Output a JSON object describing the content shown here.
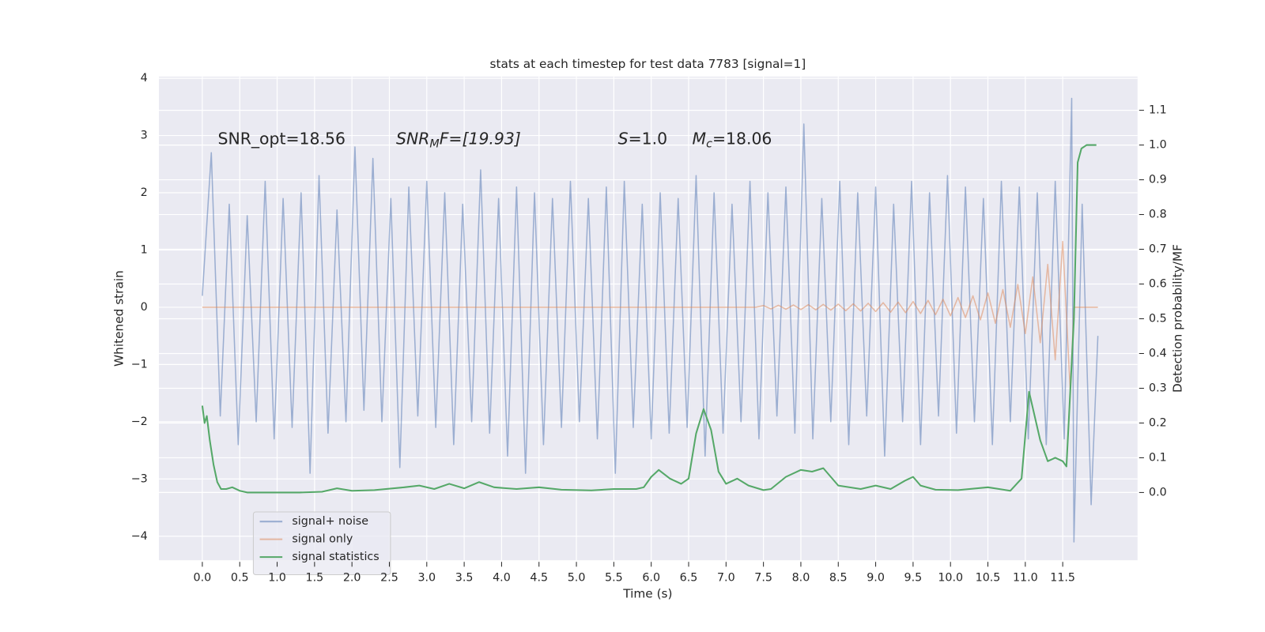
{
  "chart_data": {
    "type": "line",
    "title": "stats at each timestep for test data 7783 [signal=1]",
    "x_label": "Time (s)",
    "y_label": "Whitened strain",
    "y2_label": "Detection probability/MF",
    "annotations": [
      [
        "SNR_opt=18.56"
      ],
      [
        "SNR",
        "M",
        "F=[19.93]"
      ],
      [
        "S",
        "=1.0"
      ],
      [
        "M",
        "c",
        "=18.06"
      ]
    ],
    "grid": true,
    "legend_position": "lower left",
    "xlim": [
      -0.58,
      12.5
    ],
    "xticks": [
      {
        "value": 0,
        "label": "0.0"
      },
      {
        "value": 0.5,
        "label": "0.5"
      },
      {
        "value": 1,
        "label": "1.0"
      },
      {
        "value": 1.5,
        "label": "1.5"
      },
      {
        "value": 2,
        "label": "2.0"
      },
      {
        "value": 2.5,
        "label": "2.5"
      },
      {
        "value": 3,
        "label": "3.0"
      },
      {
        "value": 3.5,
        "label": "3.5"
      },
      {
        "value": 4,
        "label": "4.0"
      },
      {
        "value": 4.5,
        "label": "4.5"
      },
      {
        "value": 5,
        "label": "5.0"
      },
      {
        "value": 5.5,
        "label": "5.5"
      },
      {
        "value": 6,
        "label": "6.0"
      },
      {
        "value": 6.5,
        "label": "6.5"
      },
      {
        "value": 7,
        "label": "7.0"
      },
      {
        "value": 7.5,
        "label": "7.5"
      },
      {
        "value": 8,
        "label": "8.0"
      },
      {
        "value": 8.5,
        "label": "8.5"
      },
      {
        "value": 9,
        "label": "9.0"
      },
      {
        "value": 9.5,
        "label": "9.5"
      },
      {
        "value": 10,
        "label": "10.0"
      },
      {
        "value": 10.5,
        "label": "10.5"
      },
      {
        "value": 11,
        "label": "11.0"
      },
      {
        "value": 11.5,
        "label": "11.5"
      }
    ],
    "ylim": [
      -4.42,
      4.03
    ],
    "yticks": [
      {
        "value": -4,
        "label": "−4"
      },
      {
        "value": -3,
        "label": "−3"
      },
      {
        "value": -2,
        "label": "−2"
      },
      {
        "value": -1,
        "label": "−1"
      },
      0,
      1,
      2,
      3,
      4
    ],
    "y2lim": [
      -0.195,
      1.197
    ],
    "y2ticks": [
      {
        "value": 0,
        "label": "0.0"
      },
      {
        "value": 0.1,
        "label": "0.1"
      },
      {
        "value": 0.2,
        "label": "0.2"
      },
      {
        "value": 0.3,
        "label": "0.3"
      },
      {
        "value": 0.4,
        "label": "0.4"
      },
      {
        "value": 0.5,
        "label": "0.5"
      },
      {
        "value": 0.6,
        "label": "0.6"
      },
      {
        "value": 0.7,
        "label": "0.7"
      },
      {
        "value": 0.8,
        "label": "0.8"
      },
      {
        "value": 0.9,
        "label": "0.9"
      },
      {
        "value": 1,
        "label": "1.0"
      },
      {
        "value": 1.1,
        "label": "1.1"
      }
    ],
    "series": [
      {
        "name": "signal+ noise",
        "color": "#4c72b0",
        "alpha": 0.5,
        "x": [
          0.0,
          0.12,
          0.24,
          0.36,
          0.48,
          0.6,
          0.72,
          0.84,
          0.96,
          1.08,
          1.2,
          1.32,
          1.44,
          1.56,
          1.68,
          1.8,
          1.92,
          2.04,
          2.16,
          2.28,
          2.4,
          2.52,
          2.64,
          2.76,
          2.88,
          3.0,
          3.12,
          3.24,
          3.36,
          3.48,
          3.6,
          3.72,
          3.84,
          3.96,
          4.08,
          4.2,
          4.32,
          4.44,
          4.56,
          4.68,
          4.8,
          4.92,
          5.04,
          5.16,
          5.28,
          5.4,
          5.52,
          5.64,
          5.76,
          5.88,
          6.0,
          6.12,
          6.24,
          6.36,
          6.48,
          6.6,
          6.72,
          6.84,
          6.96,
          7.08,
          7.2,
          7.32,
          7.44,
          7.56,
          7.68,
          7.8,
          7.92,
          8.04,
          8.16,
          8.28,
          8.4,
          8.52,
          8.64,
          8.76,
          8.88,
          9.0,
          9.12,
          9.24,
          9.36,
          9.48,
          9.6,
          9.72,
          9.84,
          9.96,
          10.08,
          10.2,
          10.32,
          10.44,
          10.56,
          10.68,
          10.8,
          10.92,
          11.04,
          11.16,
          11.28,
          11.4,
          11.52,
          11.62,
          11.65,
          11.76,
          11.88,
          11.97
        ],
        "values": [
          0.2,
          2.7,
          -1.9,
          1.8,
          -2.4,
          1.6,
          -2.0,
          2.2,
          -2.3,
          1.9,
          -2.1,
          2.0,
          -2.9,
          2.3,
          -2.2,
          1.7,
          -2.0,
          2.8,
          -1.8,
          2.6,
          -2.0,
          1.9,
          -2.8,
          2.1,
          -1.9,
          2.2,
          -2.1,
          2.0,
          -2.4,
          1.8,
          -2.0,
          2.4,
          -2.2,
          1.9,
          -2.6,
          2.1,
          -2.9,
          2.0,
          -2.4,
          1.9,
          -2.1,
          2.2,
          -2.0,
          1.9,
          -2.3,
          2.1,
          -2.9,
          2.2,
          -2.1,
          1.8,
          -2.3,
          2.0,
          -2.2,
          1.9,
          -2.1,
          2.3,
          -2.6,
          2.0,
          -2.2,
          1.8,
          -2.0,
          2.2,
          -2.3,
          2.0,
          -1.9,
          2.1,
          -2.2,
          3.2,
          -2.3,
          1.9,
          -2.0,
          2.2,
          -2.4,
          2.0,
          -1.9,
          2.1,
          -2.6,
          1.8,
          -2.0,
          2.2,
          -2.4,
          2.0,
          -1.9,
          2.3,
          -2.2,
          2.1,
          -2.0,
          1.9,
          -2.4,
          2.2,
          -2.0,
          2.1,
          -2.3,
          2.0,
          -2.4,
          2.2,
          -2.3,
          3.65,
          -4.1,
          1.8,
          -3.45,
          -0.5
        ]
      },
      {
        "name": "signal only",
        "color": "#dd8452",
        "alpha": 0.5,
        "x": [
          0,
          7.4,
          7.5,
          7.6,
          7.7,
          7.8,
          7.9,
          8.0,
          8.1,
          8.2,
          8.3,
          8.4,
          8.5,
          8.6,
          8.7,
          8.8,
          8.9,
          9.0,
          9.1,
          9.2,
          9.3,
          9.4,
          9.5,
          9.6,
          9.7,
          9.8,
          9.9,
          10.0,
          10.1,
          10.2,
          10.3,
          10.4,
          10.5,
          10.6,
          10.7,
          10.8,
          10.9,
          11.0,
          11.1,
          11.2,
          11.3,
          11.4,
          11.5,
          11.6,
          11.65,
          11.97
        ],
        "values": [
          0,
          0,
          0.03,
          -0.03,
          0.035,
          -0.035,
          0.04,
          -0.04,
          0.045,
          -0.045,
          0.05,
          -0.05,
          0.055,
          -0.06,
          0.06,
          -0.065,
          0.07,
          -0.075,
          0.08,
          -0.085,
          0.09,
          -0.095,
          0.1,
          -0.11,
          0.12,
          -0.13,
          0.14,
          -0.15,
          0.17,
          -0.18,
          0.2,
          -0.22,
          0.25,
          -0.28,
          0.31,
          -0.35,
          0.4,
          -0.46,
          0.53,
          -0.62,
          0.75,
          -0.92,
          1.15,
          -1.45,
          0,
          0
        ]
      },
      {
        "name": "signal statistics",
        "color": "#55a868",
        "alpha": 1,
        "axis": "y2",
        "x": [
          0,
          0.03,
          0.06,
          0.1,
          0.15,
          0.2,
          0.25,
          0.32,
          0.4,
          0.5,
          0.6,
          0.8,
          1.0,
          1.3,
          1.6,
          1.8,
          2.0,
          2.3,
          2.7,
          2.9,
          3.1,
          3.3,
          3.5,
          3.7,
          3.9,
          4.2,
          4.5,
          4.8,
          5.2,
          5.5,
          5.8,
          5.9,
          6.0,
          6.1,
          6.25,
          6.4,
          6.5,
          6.6,
          6.7,
          6.8,
          6.9,
          7.0,
          7.15,
          7.3,
          7.5,
          7.6,
          7.8,
          8.0,
          8.15,
          8.3,
          8.5,
          8.8,
          9.0,
          9.2,
          9.4,
          9.5,
          9.6,
          9.8,
          10.1,
          10.5,
          10.8,
          10.95,
          11.05,
          11.2,
          11.3,
          11.4,
          11.5,
          11.55,
          11.65,
          11.7,
          11.75,
          11.82,
          11.95
        ],
        "values": [
          0.25,
          0.2,
          0.22,
          0.15,
          0.08,
          0.03,
          0.01,
          0.01,
          0.015,
          0.005,
          0.0,
          0.0,
          0.0,
          0.0,
          0.002,
          0.012,
          0.005,
          0.007,
          0.015,
          0.02,
          0.01,
          0.025,
          0.012,
          0.03,
          0.015,
          0.01,
          0.015,
          0.008,
          0.006,
          0.01,
          0.01,
          0.015,
          0.045,
          0.065,
          0.04,
          0.025,
          0.04,
          0.17,
          0.24,
          0.18,
          0.06,
          0.025,
          0.04,
          0.02,
          0.007,
          0.01,
          0.045,
          0.065,
          0.06,
          0.07,
          0.02,
          0.01,
          0.02,
          0.01,
          0.035,
          0.045,
          0.02,
          0.008,
          0.007,
          0.015,
          0.005,
          0.04,
          0.29,
          0.15,
          0.09,
          0.1,
          0.09,
          0.075,
          0.5,
          0.95,
          0.99,
          1.0,
          1.0
        ]
      }
    ]
  }
}
